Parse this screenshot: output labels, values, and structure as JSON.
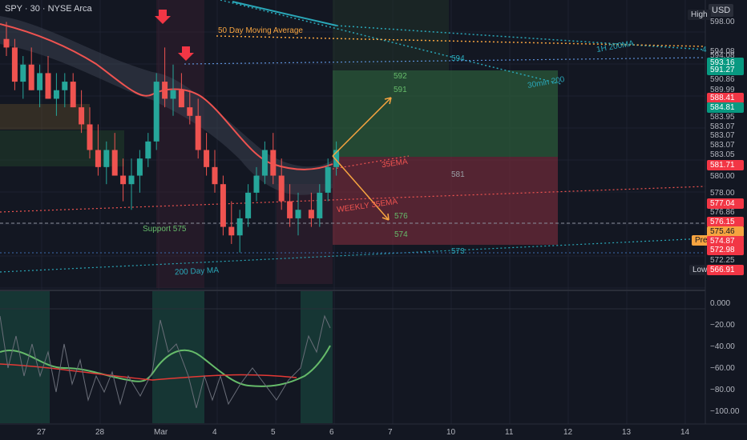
{
  "header": {
    "symbol": "SPY · 30 · NYSE Arca",
    "currency": "USD",
    "high_tag": "High",
    "low_tag": "Low",
    "pre_tag": "Pre"
  },
  "price_axis": [
    {
      "label": "598.00",
      "price": 598.0,
      "style": "plain"
    },
    {
      "label": "594.08",
      "price": 594.6,
      "style": "plain"
    },
    {
      "label": "594.08",
      "price": 594.1,
      "style": "plain"
    },
    {
      "label": "593.16",
      "price": 593.3,
      "style": "green"
    },
    {
      "label": "591.27",
      "price": 592.4,
      "style": "green"
    },
    {
      "label": "590.86",
      "price": 591.3,
      "style": "plain"
    },
    {
      "label": "589.99",
      "price": 590.1,
      "style": "plain"
    },
    {
      "label": "588.41",
      "price": 589.1,
      "style": "red"
    },
    {
      "label": "584.81",
      "price": 588.0,
      "style": "green"
    },
    {
      "label": "583.95",
      "price": 586.9,
      "style": "plain"
    },
    {
      "label": "583.07",
      "price": 585.8,
      "style": "plain"
    },
    {
      "label": "583.07",
      "price": 584.7,
      "style": "plain"
    },
    {
      "label": "583.07",
      "price": 583.6,
      "style": "plain"
    },
    {
      "label": "583.05",
      "price": 582.5,
      "style": "plain"
    },
    {
      "label": "581.71",
      "price": 581.3,
      "style": "red"
    },
    {
      "label": "580.00",
      "price": 580.0,
      "style": "plain"
    },
    {
      "label": "578.00",
      "price": 578.0,
      "style": "plain"
    },
    {
      "label": "577.04",
      "price": 576.8,
      "style": "red"
    },
    {
      "label": "576.86",
      "price": 575.7,
      "style": "plain"
    },
    {
      "label": "576.15",
      "price": 574.6,
      "style": "red"
    },
    {
      "label": "575.46",
      "price": 573.5,
      "style": "orange"
    },
    {
      "label": "574.87",
      "price": 572.4,
      "style": "red"
    },
    {
      "label": "572.98",
      "price": 571.3,
      "style": "red"
    },
    {
      "label": "572.25",
      "price": 570.1,
      "style": "plain"
    },
    {
      "label": "566.91",
      "price": 569.0,
      "style": "red"
    }
  ],
  "osc_axis": [
    "0.000",
    "−20.00",
    "−40.00",
    "−60.00",
    "−80.00",
    "−100.00"
  ],
  "time_axis": [
    "27",
    "28",
    "Mar",
    "4",
    "5",
    "6",
    "7",
    "10",
    "11",
    "12",
    "13",
    "14"
  ],
  "annotations": {
    "ma50": "50 Day Moving Average",
    "ma200_1h": "1H 200MA",
    "min30_200": "30min 200",
    "ema35": "35EMA",
    "weekly_ema": "WEEKLY 35EMA",
    "support": "Support 575",
    "ma200_day": "200 Day MA",
    "l594": "594",
    "l592": "592",
    "l591": "591",
    "l581": "581",
    "l576": "576",
    "l574": "574",
    "l573": "573",
    "edge4": "4"
  },
  "colors": {
    "background": "#131722",
    "up": "#26a69a",
    "down": "#ef5350",
    "ema": "#ef5350",
    "orange": "#f7a440",
    "teal_line": "#2aa7b8",
    "osc_green": "#66bb6a",
    "osc_red": "#e53935"
  },
  "chart_data": {
    "type": "candlestick",
    "ylim": [
      566,
      600
    ],
    "candles": [
      [
        596,
        598,
        594,
        595
      ],
      [
        595,
        596,
        590,
        591
      ],
      [
        591,
        594,
        589,
        593
      ],
      [
        593,
        595,
        590,
        590
      ],
      [
        590,
        593,
        588,
        592
      ],
      [
        592,
        594,
        589,
        589
      ],
      [
        589,
        592,
        587,
        590
      ],
      [
        590,
        592,
        588,
        591
      ],
      [
        591,
        592,
        588,
        588
      ],
      [
        588,
        590,
        585,
        586
      ],
      [
        586,
        588,
        582,
        583
      ],
      [
        583,
        586,
        580,
        581
      ],
      [
        581,
        584,
        579,
        583
      ],
      [
        583,
        585,
        580,
        580
      ],
      [
        580,
        582,
        577,
        579
      ],
      [
        579,
        582,
        576,
        580
      ],
      [
        580,
        583,
        578,
        582
      ],
      [
        582,
        585,
        581,
        584
      ],
      [
        584,
        592,
        583,
        591
      ],
      [
        591,
        595,
        588,
        589
      ],
      [
        589,
        593,
        587,
        590
      ],
      [
        590,
        592,
        588,
        588
      ],
      [
        588,
        590,
        586,
        587
      ],
      [
        587,
        589,
        582,
        583
      ],
      [
        583,
        585,
        580,
        581
      ],
      [
        581,
        583,
        578,
        579
      ],
      [
        579,
        580,
        573,
        574
      ],
      [
        574,
        577,
        572,
        573
      ],
      [
        573,
        576,
        571,
        575
      ],
      [
        575,
        579,
        574,
        578
      ],
      [
        578,
        581,
        577,
        580
      ],
      [
        580,
        584,
        579,
        583
      ],
      [
        583,
        585,
        579,
        580
      ],
      [
        580,
        582,
        576,
        577
      ],
      [
        577,
        579,
        574,
        575
      ],
      [
        575,
        578,
        573,
        576
      ],
      [
        576,
        578,
        574,
        575
      ],
      [
        575,
        579,
        574,
        578
      ],
      [
        578,
        582,
        577,
        581
      ],
      [
        581,
        584,
        580,
        583
      ]
    ]
  }
}
